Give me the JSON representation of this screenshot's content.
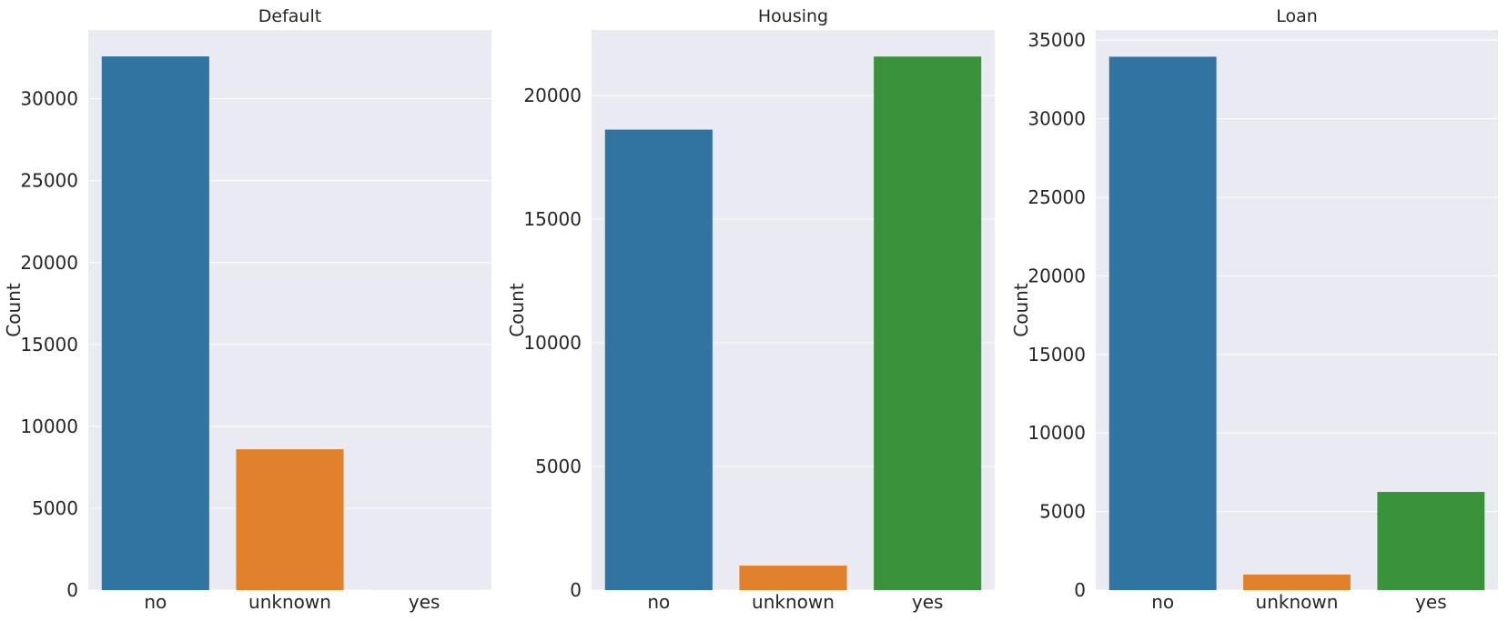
{
  "chart_data": [
    {
      "type": "bar",
      "title": "Default",
      "ylabel": "Count",
      "xlabel": "",
      "categories": [
        "no",
        "unknown",
        "yes"
      ],
      "values": [
        32588,
        8597,
        3
      ],
      "ylim": [
        0,
        34200
      ],
      "yticks": [
        0,
        5000,
        10000,
        15000,
        20000,
        25000,
        30000
      ],
      "colors": [
        "#3274a1",
        "#e1812c",
        "#3a923a"
      ],
      "grid": true
    },
    {
      "type": "bar",
      "title": "Housing",
      "ylabel": "Count",
      "xlabel": "",
      "categories": [
        "no",
        "unknown",
        "yes"
      ],
      "values": [
        18622,
        990,
        21576
      ],
      "ylim": [
        0,
        22650
      ],
      "yticks": [
        0,
        5000,
        10000,
        15000,
        20000
      ],
      "colors": [
        "#3274a1",
        "#e1812c",
        "#3a923a"
      ],
      "grid": true
    },
    {
      "type": "bar",
      "title": "Loan",
      "ylabel": "Count",
      "xlabel": "",
      "categories": [
        "no",
        "unknown",
        "yes"
      ],
      "values": [
        33950,
        990,
        6248
      ],
      "ylim": [
        0,
        35650
      ],
      "yticks": [
        0,
        5000,
        10000,
        15000,
        20000,
        25000,
        30000,
        35000
      ],
      "colors": [
        "#3274a1",
        "#e1812c",
        "#3a923a"
      ],
      "grid": true
    }
  ]
}
